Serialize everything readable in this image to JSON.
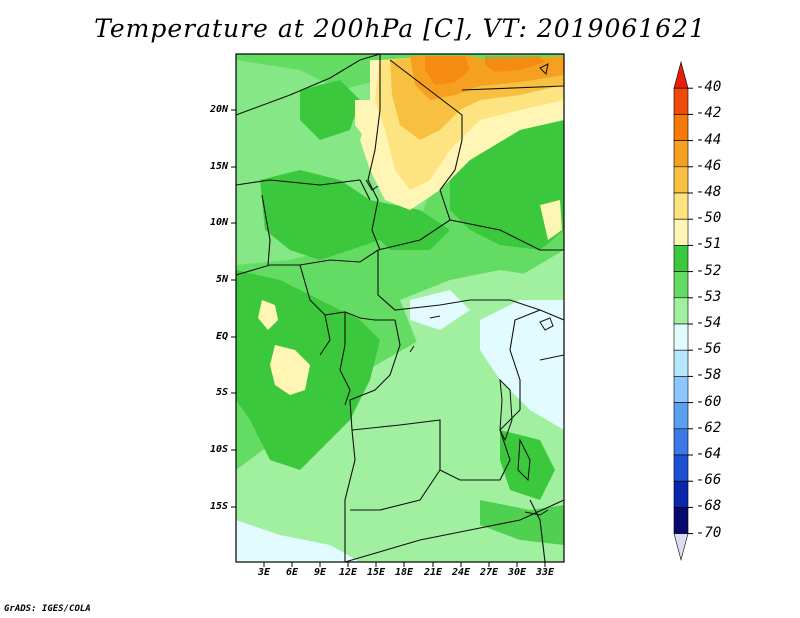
{
  "title": "Temperature at 200hPa [C], VT: 2019061621",
  "credit": "GrADS: IGES/COLA",
  "map": {
    "lat_labels": [
      "20N",
      "15N",
      "10N",
      "5N",
      "EQ",
      "5S",
      "10S",
      "15S"
    ],
    "lon_labels": [
      "3E",
      "6E",
      "9E",
      "12E",
      "15E",
      "18E",
      "21E",
      "24E",
      "27E",
      "30E",
      "33E"
    ]
  },
  "colorbar": {
    "levels": [
      "-40",
      "-42",
      "-44",
      "-46",
      "-48",
      "-50",
      "-51",
      "-52",
      "-53",
      "-54",
      "-56",
      "-58",
      "-60",
      "-62",
      "-64",
      "-66",
      "-68",
      "-70"
    ],
    "colors": [
      "#e61e0a",
      "#f04a0a",
      "#f57a0a",
      "#f5a020",
      "#f8c040",
      "#fde480",
      "#fff5b4",
      "#3cc83c",
      "#64dc64",
      "#a0f0a0",
      "#e2fbff",
      "#b4e6ff",
      "#8cc8ff",
      "#5aa0f0",
      "#3c78e6",
      "#1e50d2",
      "#0a28aa",
      "#080870",
      "#dcdcf5"
    ]
  }
}
